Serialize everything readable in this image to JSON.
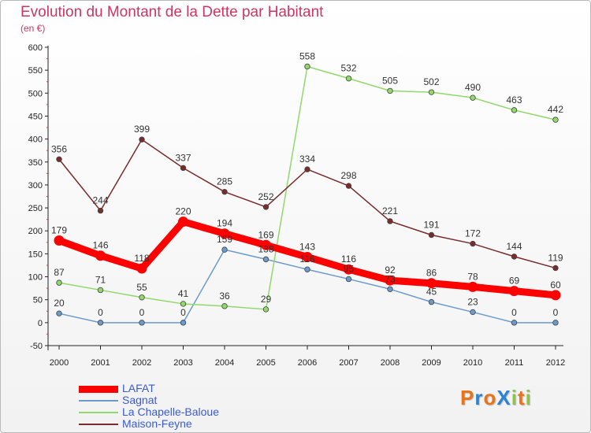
{
  "title": "Evolution du Montant de la Dette par Habitant",
  "subtitle": "(en €)",
  "logo": {
    "text": "ProXiti",
    "colors": [
      "#e8731a",
      "#2b83d1",
      "#e8731a",
      "#2b83d1",
      "#8cc63f",
      "#e8731a",
      "#8cc63f"
    ]
  },
  "chart_data": {
    "type": "line",
    "x": [
      "2000",
      "2001",
      "2002",
      "2003",
      "2004",
      "2005",
      "2006",
      "2007",
      "2008",
      "2009",
      "2010",
      "2011",
      "2012"
    ],
    "ylim": [
      -50,
      600
    ],
    "yticks": [
      -50,
      0,
      50,
      100,
      150,
      200,
      250,
      300,
      350,
      400,
      450,
      500,
      550,
      600
    ],
    "grid": false,
    "legend_position": "bottom-left",
    "series": [
      {
        "name": "Sagnat",
        "color": "#6b9bcc",
        "width": 1.5,
        "values": [
          20,
          0,
          0,
          0,
          159,
          138,
          116,
          95,
          73,
          45,
          23,
          0,
          0
        ],
        "labels": [
          "20",
          "0",
          "0",
          "0",
          "159",
          "138",
          "116",
          "95",
          "73",
          "45",
          "23",
          "0",
          "0"
        ]
      },
      {
        "name": "La Chapelle-Baloue",
        "color": "#90d96a",
        "width": 1.5,
        "values": [
          87,
          71,
          55,
          41,
          36,
          29,
          558,
          532,
          505,
          502,
          490,
          463,
          442
        ],
        "labels": [
          "87",
          "71",
          "55",
          "41",
          "36",
          "29",
          "558",
          "532",
          "505",
          "502",
          "490",
          "463",
          "442"
        ]
      },
      {
        "name": "Maison-Feyne",
        "color": "#7a2b2b",
        "width": 1.5,
        "values": [
          356,
          244,
          399,
          337,
          285,
          252,
          334,
          298,
          221,
          191,
          172,
          144,
          119
        ],
        "labels": [
          "356",
          "244",
          "399",
          "337",
          "285",
          "252",
          "334",
          "298",
          "221",
          "191",
          "172",
          "144",
          "119"
        ]
      },
      {
        "name": "LAFAT",
        "color": "#ff0000",
        "width": 9,
        "values": [
          179,
          146,
          118,
          220,
          194,
          169,
          143,
          116,
          92,
          86,
          78,
          69,
          60
        ],
        "labels": [
          "179",
          "146",
          "118",
          "220",
          "194",
          "169",
          "143",
          "116",
          "92",
          "86",
          "78",
          "69",
          "60"
        ]
      }
    ],
    "legend_order": [
      "LAFAT",
      "Sagnat",
      "La Chapelle-Baloue",
      "Maison-Feyne"
    ]
  }
}
